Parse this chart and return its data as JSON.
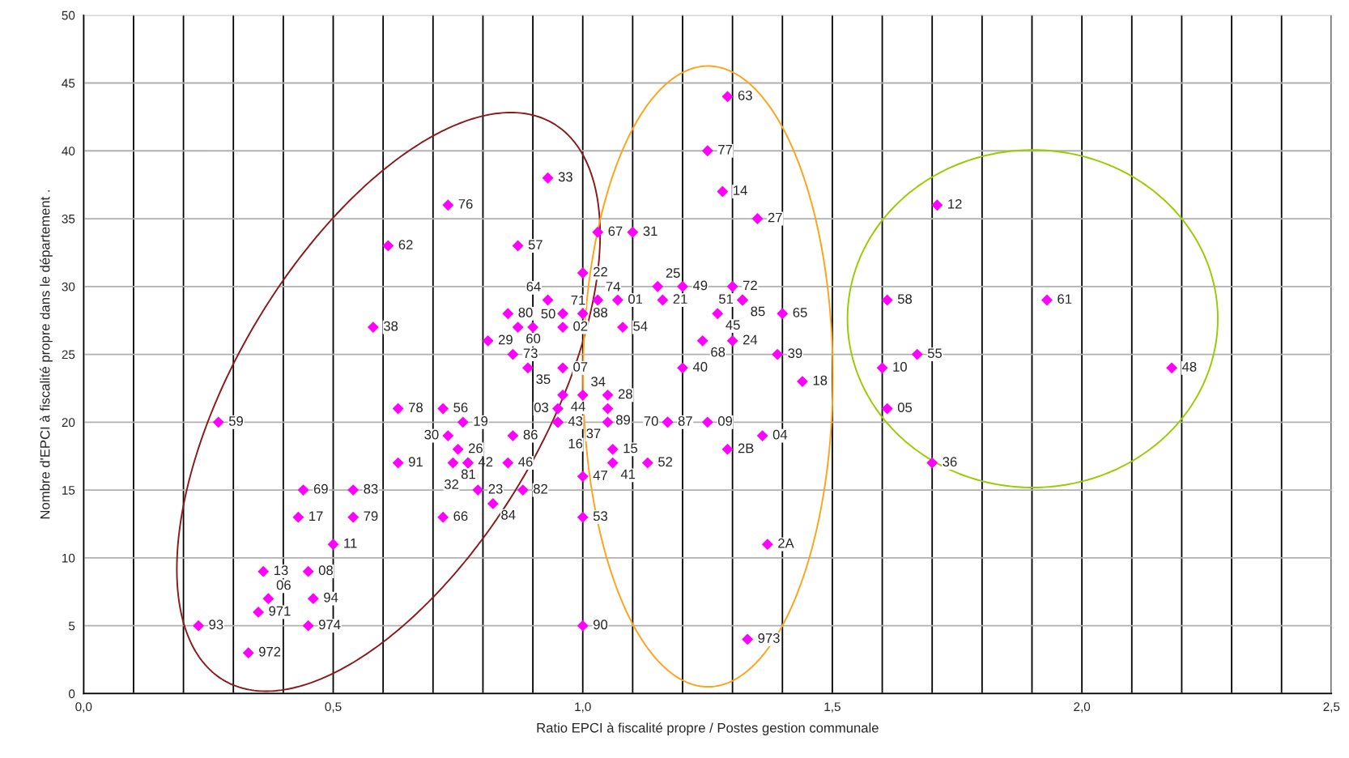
{
  "chart_data": {
    "type": "scatter",
    "xlabel": "Ratio EPCI à fiscalité propre / Postes gestion communale",
    "ylabel": "Nombre d'EPCI à fiscalité propre dans le département .",
    "xlim": [
      0,
      2.5
    ],
    "ylim": [
      0,
      50
    ],
    "xticks": [
      {
        "value": 0,
        "label": "0,0"
      },
      {
        "value": 0.1,
        "label": null
      },
      {
        "value": 0.2,
        "label": null
      },
      {
        "value": 0.3,
        "label": null
      },
      {
        "value": 0.4,
        "label": null
      },
      {
        "value": 0.5,
        "label": "0,5"
      },
      {
        "value": 0.6,
        "label": null
      },
      {
        "value": 0.7,
        "label": null
      },
      {
        "value": 0.8,
        "label": null
      },
      {
        "value": 0.9,
        "label": null
      },
      {
        "value": 1.0,
        "label": "1,0"
      },
      {
        "value": 1.1,
        "label": null
      },
      {
        "value": 1.2,
        "label": null
      },
      {
        "value": 1.3,
        "label": null
      },
      {
        "value": 1.4,
        "label": null
      },
      {
        "value": 1.5,
        "label": "1,5"
      },
      {
        "value": 1.6,
        "label": null
      },
      {
        "value": 1.7,
        "label": null
      },
      {
        "value": 1.8,
        "label": null
      },
      {
        "value": 1.9,
        "label": null
      },
      {
        "value": 2.0,
        "label": "2,0"
      },
      {
        "value": 2.1,
        "label": null
      },
      {
        "value": 2.2,
        "label": null
      },
      {
        "value": 2.3,
        "label": null
      },
      {
        "value": 2.4,
        "label": null
      },
      {
        "value": 2.5,
        "label": "2,5"
      }
    ],
    "yticks": [
      0,
      5,
      10,
      15,
      20,
      25,
      30,
      35,
      40,
      45,
      50
    ],
    "grid": true,
    "marker": "diamond",
    "series": [
      {
        "color": "#ff00ff",
        "x": [
          0.27,
          0.23,
          0.33,
          0.35,
          0.37,
          0.36,
          0.45,
          0.46,
          0.45,
          0.5,
          0.43,
          0.44,
          0.54,
          0.54,
          0.63,
          0.63,
          0.58,
          0.61,
          0.73,
          0.72,
          0.76,
          0.73,
          0.75,
          0.74,
          0.77,
          0.77,
          0.79,
          0.82,
          0.88,
          0.72,
          0.85,
          0.86,
          0.81,
          0.85,
          0.87,
          0.9,
          0.86,
          0.89,
          0.96,
          0.96,
          0.96,
          0.93,
          1.0,
          1.0,
          0.93,
          0.87,
          1.03,
          1.1,
          1.03,
          1.07,
          1.15,
          1.2,
          1.16,
          1.08,
          1.29,
          1.25,
          1.28,
          1.35,
          1.3,
          1.32,
          1.32,
          1.27,
          1.4,
          1.24,
          1.3,
          1.39,
          1.2,
          1.44,
          0.96,
          0.95,
          0.95,
          0.95,
          1.0,
          1.05,
          1.05,
          1.05,
          1.17,
          1.17,
          1.25,
          1.36,
          1.29,
          1.06,
          1.06,
          1.13,
          1.0,
          1.0,
          1.37,
          1.0,
          1.33,
          1.71,
          1.61,
          1.93,
          1.67,
          1.6,
          2.18,
          1.61,
          1.7
        ],
        "values": [
          20,
          5,
          3,
          6,
          7,
          9,
          9,
          7,
          5,
          11,
          13,
          15,
          15,
          13,
          17,
          21,
          27,
          33,
          36,
          21,
          20,
          19,
          18,
          17,
          17,
          17,
          15,
          14,
          15,
          13,
          17,
          19,
          26,
          28,
          27,
          27,
          25,
          24,
          24,
          27,
          28,
          29,
          28,
          31,
          38,
          33,
          34,
          34,
          29,
          29,
          30,
          30,
          29,
          27,
          44,
          40,
          37,
          35,
          30,
          29,
          29,
          28,
          28,
          26,
          26,
          25,
          24,
          23,
          22,
          21,
          20,
          20,
          22,
          22,
          21,
          20,
          20,
          20,
          20,
          19,
          18,
          18,
          17,
          17,
          16,
          13,
          11,
          5,
          4,
          36,
          29,
          29,
          25,
          24,
          24,
          21,
          17
        ]
      }
    ],
    "annotations": [
      {
        "text": "59",
        "x": 0.27,
        "y": 20
      },
      {
        "text": "93",
        "x": 0.23,
        "y": 5
      },
      {
        "text": "972",
        "x": 0.33,
        "y": 3
      },
      {
        "text": "971",
        "x": 0.35,
        "y": 6
      },
      {
        "text": "06",
        "x": 0.37,
        "y": 7
      },
      {
        "text": "13",
        "x": 0.36,
        "y": 9
      },
      {
        "text": "08",
        "x": 0.45,
        "y": 9
      },
      {
        "text": "94",
        "x": 0.46,
        "y": 7
      },
      {
        "text": "974",
        "x": 0.45,
        "y": 5
      },
      {
        "text": "11",
        "x": 0.5,
        "y": 11
      },
      {
        "text": "17",
        "x": 0.43,
        "y": 13
      },
      {
        "text": "69",
        "x": 0.44,
        "y": 15
      },
      {
        "text": "83",
        "x": 0.54,
        "y": 15
      },
      {
        "text": "79",
        "x": 0.54,
        "y": 13
      },
      {
        "text": "91",
        "x": 0.63,
        "y": 17
      },
      {
        "text": "78",
        "x": 0.63,
        "y": 21
      },
      {
        "text": "38",
        "x": 0.58,
        "y": 27
      },
      {
        "text": "62",
        "x": 0.61,
        "y": 33
      },
      {
        "text": "76",
        "x": 0.73,
        "y": 36
      },
      {
        "text": "56",
        "x": 0.72,
        "y": 21
      },
      {
        "text": "19",
        "x": 0.76,
        "y": 20
      },
      {
        "text": "30",
        "x": 0.73,
        "y": 19
      },
      {
        "text": "26",
        "x": 0.75,
        "y": 18
      },
      {
        "text": "81",
        "x": 0.74,
        "y": 17
      },
      {
        "text": "32",
        "x": 0.77,
        "y": 17
      },
      {
        "text": "42",
        "x": 0.77,
        "y": 17
      },
      {
        "text": "23",
        "x": 0.79,
        "y": 15
      },
      {
        "text": "84",
        "x": 0.82,
        "y": 14
      },
      {
        "text": "82",
        "x": 0.88,
        "y": 15
      },
      {
        "text": "66",
        "x": 0.72,
        "y": 13
      },
      {
        "text": "46",
        "x": 0.85,
        "y": 17
      },
      {
        "text": "86",
        "x": 0.86,
        "y": 19
      },
      {
        "text": "29",
        "x": 0.81,
        "y": 26
      },
      {
        "text": "80",
        "x": 0.85,
        "y": 28
      },
      {
        "text": "60",
        "x": 0.87,
        "y": 27
      },
      {
        "text": "50",
        "x": 0.9,
        "y": 27
      },
      {
        "text": "73",
        "x": 0.86,
        "y": 25
      },
      {
        "text": "35",
        "x": 0.89,
        "y": 24
      },
      {
        "text": "07",
        "x": 0.96,
        "y": 24
      },
      {
        "text": "02",
        "x": 0.96,
        "y": 27
      },
      {
        "text": "71",
        "x": 0.96,
        "y": 28
      },
      {
        "text": "64",
        "x": 0.93,
        "y": 29
      },
      {
        "text": "88",
        "x": 1.0,
        "y": 28
      },
      {
        "text": "22",
        "x": 1.0,
        "y": 31
      },
      {
        "text": "33",
        "x": 0.93,
        "y": 38
      },
      {
        "text": "57",
        "x": 0.87,
        "y": 33
      },
      {
        "text": "67",
        "x": 1.03,
        "y": 34
      },
      {
        "text": "31",
        "x": 1.1,
        "y": 34
      },
      {
        "text": "74",
        "x": 1.03,
        "y": 29
      },
      {
        "text": "01",
        "x": 1.07,
        "y": 29
      },
      {
        "text": "25",
        "x": 1.15,
        "y": 30
      },
      {
        "text": "49",
        "x": 1.2,
        "y": 30
      },
      {
        "text": "21",
        "x": 1.16,
        "y": 29
      },
      {
        "text": "54",
        "x": 1.08,
        "y": 27
      },
      {
        "text": "63",
        "x": 1.29,
        "y": 44
      },
      {
        "text": "77",
        "x": 1.25,
        "y": 40
      },
      {
        "text": "14",
        "x": 1.28,
        "y": 37
      },
      {
        "text": "27",
        "x": 1.35,
        "y": 35
      },
      {
        "text": "72",
        "x": 1.3,
        "y": 30
      },
      {
        "text": "85",
        "x": 1.32,
        "y": 29
      },
      {
        "text": "51",
        "x": 1.32,
        "y": 29
      },
      {
        "text": "45",
        "x": 1.27,
        "y": 28
      },
      {
        "text": "65",
        "x": 1.4,
        "y": 28
      },
      {
        "text": "68",
        "x": 1.24,
        "y": 26
      },
      {
        "text": "24",
        "x": 1.3,
        "y": 26
      },
      {
        "text": "39",
        "x": 1.39,
        "y": 25
      },
      {
        "text": "40",
        "x": 1.2,
        "y": 24
      },
      {
        "text": "18",
        "x": 1.44,
        "y": 23
      },
      {
        "text": "44",
        "x": 0.96,
        "y": 22
      },
      {
        "text": "03",
        "x": 0.95,
        "y": 21
      },
      {
        "text": "43",
        "x": 0.95,
        "y": 20
      },
      {
        "text": "16",
        "x": 0.95,
        "y": 20
      },
      {
        "text": "34",
        "x": 1.0,
        "y": 22
      },
      {
        "text": "28",
        "x": 1.05,
        "y": 22
      },
      {
        "text": "89",
        "x": 1.05,
        "y": 21
      },
      {
        "text": "37",
        "x": 1.05,
        "y": 20
      },
      {
        "text": "87",
        "x": 1.17,
        "y": 20
      },
      {
        "text": "70",
        "x": 1.17,
        "y": 20
      },
      {
        "text": "09",
        "x": 1.25,
        "y": 20
      },
      {
        "text": "04",
        "x": 1.36,
        "y": 19
      },
      {
        "text": "2B",
        "x": 1.29,
        "y": 18
      },
      {
        "text": "15",
        "x": 1.06,
        "y": 18
      },
      {
        "text": "41",
        "x": 1.06,
        "y": 17
      },
      {
        "text": "52",
        "x": 1.13,
        "y": 17
      },
      {
        "text": "47",
        "x": 1.0,
        "y": 16
      },
      {
        "text": "53",
        "x": 1.0,
        "y": 13
      },
      {
        "text": "2A",
        "x": 1.37,
        "y": 11
      },
      {
        "text": "90",
        "x": 1.0,
        "y": 5
      },
      {
        "text": "973",
        "x": 1.33,
        "y": 4
      },
      {
        "text": "12",
        "x": 1.71,
        "y": 36
      },
      {
        "text": "58",
        "x": 1.61,
        "y": 29
      },
      {
        "text": "61",
        "x": 1.93,
        "y": 29
      },
      {
        "text": "55",
        "x": 1.67,
        "y": 25
      },
      {
        "text": "10",
        "x": 1.6,
        "y": 24
      },
      {
        "text": "48",
        "x": 2.18,
        "y": 24
      },
      {
        "text": "05",
        "x": 1.61,
        "y": 21
      },
      {
        "text": "36",
        "x": 1.7,
        "y": 17
      }
    ]
  }
}
